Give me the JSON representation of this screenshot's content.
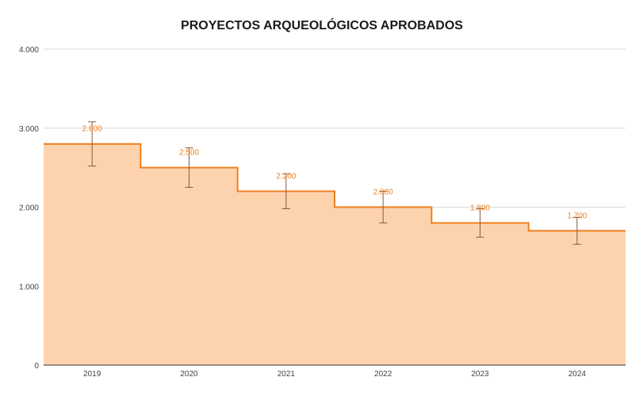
{
  "chart_data": {
    "type": "area",
    "subtype": "stepped",
    "title": "PROYECTOS ARQUEOLÓGICOS APROBADOS",
    "xlabel": "",
    "ylabel": "",
    "categories": [
      "2019",
      "2020",
      "2021",
      "2022",
      "2023",
      "2024"
    ],
    "series": [
      {
        "values": [
          2800,
          2500,
          2200,
          2000,
          1800,
          1700
        ],
        "data_labels": [
          "2.800",
          "2.500",
          "2.200",
          "2.000",
          "1.800",
          "1.700"
        ],
        "error_bars": [
          [
            2520,
            3080
          ],
          [
            2250,
            2750
          ],
          [
            1980,
            2420
          ],
          [
            1800,
            2200
          ],
          [
            1620,
            1980
          ],
          [
            1530,
            1870
          ]
        ],
        "line_color": "#f07f1c",
        "fill_color": "#fdd3ae",
        "label_color": "#f07f1c",
        "error_bar_color": "#8a5a3a"
      }
    ],
    "ylim": [
      0,
      4000
    ],
    "yticks": [
      0,
      1000,
      2000,
      3000,
      4000
    ],
    "ytick_labels": [
      "0",
      "1.000",
      "2.000",
      "3.000",
      "4.000"
    ],
    "grid": true,
    "legend": "none"
  }
}
